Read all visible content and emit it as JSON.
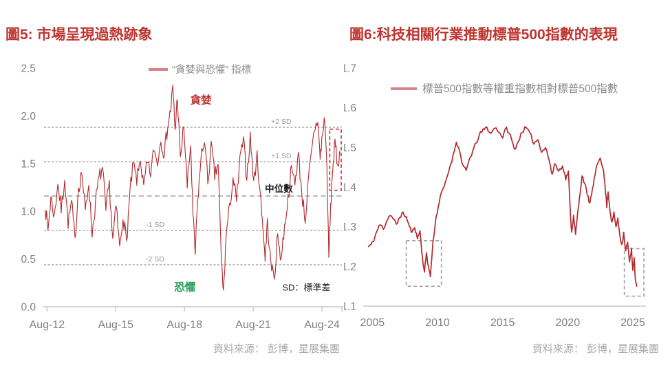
{
  "chart_data": [
    {
      "type": "line",
      "title": "圖5: 市場呈現過熱跡象",
      "title_color": "#c0342f",
      "legend": {
        "label": "“貪婪與恐懼” 指標",
        "swatch_color": "#d4878b",
        "text_color": "#8c8c8c"
      },
      "series_name": "貪婪與恐懼指標",
      "series_color": "#b3282c",
      "x_range": [
        2012.45,
        2025.45
      ],
      "y_range": [
        0,
        2.5
      ],
      "x_ticks": [
        {
          "v": 2012.58,
          "label": "Aug-12"
        },
        {
          "v": 2015.58,
          "label": "Aug-15"
        },
        {
          "v": 2018.58,
          "label": "Aug-18"
        },
        {
          "v": 2021.58,
          "label": "Aug-21"
        },
        {
          "v": 2024.58,
          "label": "Aug-24"
        }
      ],
      "y_ticks": [
        {
          "v": 0.0,
          "label": "0.0"
        },
        {
          "v": 0.5,
          "label": "0.5"
        },
        {
          "v": 1.0,
          "label": "1.0"
        },
        {
          "v": 1.5,
          "label": "1.5"
        },
        {
          "v": 2.0,
          "label": "2.0"
        },
        {
          "v": 2.5,
          "label": "2.5"
        }
      ],
      "gridlines": [
        {
          "v": 1.88,
          "label": "+2 SD",
          "label_x": 2022.8,
          "style": "dense",
          "label_style": "small"
        },
        {
          "v": 1.52,
          "label": "+1 SD",
          "label_x": 2022.8,
          "style": "dense",
          "label_style": "small"
        },
        {
          "v": 1.16,
          "label": "中位數",
          "label_x": 2022.7,
          "style": "median",
          "label_style": "dark"
        },
        {
          "v": 0.8,
          "label": "-1 SD",
          "label_x": 2017.3,
          "style": "dense",
          "label_style": "small"
        },
        {
          "v": 0.44,
          "label": "-2 SD",
          "label_x": 2017.3,
          "style": "dense",
          "label_style": "small"
        }
      ],
      "annotations": [
        {
          "text": "貪婪",
          "x": 2019.3,
          "y": 2.13,
          "color": "#c0342f",
          "size": 15.5,
          "bold": true
        },
        {
          "text": "恐懼",
          "x": 2018.6,
          "y": 0.17,
          "color": "#2f9e5f",
          "size": 15.5,
          "bold": true
        },
        {
          "text": "SD：標準差",
          "x": 2023.9,
          "y": 0.17,
          "color": "#1a1a1a",
          "size": 13,
          "bold": false
        }
      ],
      "highlight_rects": [
        {
          "x0": 2024.92,
          "x1": 2025.42,
          "y0": 1.22,
          "y1": 1.86,
          "color": "#c9363c"
        }
      ],
      "noise": {
        "seed": 7,
        "amp": 0.085,
        "subdiv": 4
      },
      "anchors": [
        [
          2012.5,
          1.05
        ],
        [
          2012.62,
          0.8
        ],
        [
          2012.75,
          1.15
        ],
        [
          2012.9,
          0.95
        ],
        [
          2013.05,
          1.3
        ],
        [
          2013.2,
          1.0
        ],
        [
          2013.35,
          1.35
        ],
        [
          2013.5,
          0.85
        ],
        [
          2013.65,
          1.1
        ],
        [
          2013.8,
          0.7
        ],
        [
          2013.95,
          1.25
        ],
        [
          2014.1,
          1.4
        ],
        [
          2014.25,
          1.0
        ],
        [
          2014.4,
          1.3
        ],
        [
          2014.55,
          0.75
        ],
        [
          2014.7,
          1.1
        ],
        [
          2014.85,
          1.35
        ],
        [
          2015.0,
          1.45
        ],
        [
          2015.15,
          1.0
        ],
        [
          2015.3,
          1.3
        ],
        [
          2015.45,
          0.7
        ],
        [
          2015.6,
          1.05
        ],
        [
          2015.75,
          0.62
        ],
        [
          2015.9,
          0.95
        ],
        [
          2016.05,
          0.68
        ],
        [
          2016.2,
          1.2
        ],
        [
          2016.35,
          1.5
        ],
        [
          2016.5,
          1.3
        ],
        [
          2016.65,
          1.55
        ],
        [
          2016.8,
          1.25
        ],
        [
          2016.95,
          1.5
        ],
        [
          2017.1,
          1.38
        ],
        [
          2017.25,
          1.65
        ],
        [
          2017.4,
          1.5
        ],
        [
          2017.55,
          1.75
        ],
        [
          2017.7,
          1.6
        ],
        [
          2017.85,
          1.9
        ],
        [
          2017.97,
          2.05
        ],
        [
          2018.07,
          2.3
        ],
        [
          2018.17,
          1.85
        ],
        [
          2018.27,
          2.2
        ],
        [
          2018.4,
          1.55
        ],
        [
          2018.55,
          1.9
        ],
        [
          2018.7,
          1.25
        ],
        [
          2018.85,
          1.7
        ],
        [
          2018.95,
          0.95
        ],
        [
          2019.05,
          0.55
        ],
        [
          2019.15,
          1.1
        ],
        [
          2019.3,
          1.55
        ],
        [
          2019.45,
          1.75
        ],
        [
          2019.6,
          1.3
        ],
        [
          2019.75,
          1.7
        ],
        [
          2019.9,
          1.35
        ],
        [
          2020.05,
          1.5
        ],
        [
          2020.18,
          0.55
        ],
        [
          2020.28,
          0.15
        ],
        [
          2020.4,
          0.75
        ],
        [
          2020.55,
          1.05
        ],
        [
          2020.7,
          1.35
        ],
        [
          2020.85,
          1.1
        ],
        [
          2021.0,
          1.55
        ],
        [
          2021.15,
          1.75
        ],
        [
          2021.3,
          1.35
        ],
        [
          2021.45,
          1.8
        ],
        [
          2021.6,
          1.3
        ],
        [
          2021.75,
          1.6
        ],
        [
          2021.9,
          1.15
        ],
        [
          2022.0,
          0.85
        ],
        [
          2022.1,
          0.5
        ],
        [
          2022.2,
          0.9
        ],
        [
          2022.35,
          0.45
        ],
        [
          2022.5,
          0.3
        ],
        [
          2022.65,
          0.75
        ],
        [
          2022.8,
          0.5
        ],
        [
          2022.95,
          0.85
        ],
        [
          2023.1,
          1.15
        ],
        [
          2023.25,
          1.45
        ],
        [
          2023.4,
          1.3
        ],
        [
          2023.55,
          1.6
        ],
        [
          2023.7,
          1.2
        ],
        [
          2023.85,
          0.9
        ],
        [
          2024.0,
          1.35
        ],
        [
          2024.12,
          1.6
        ],
        [
          2024.25,
          1.85
        ],
        [
          2024.4,
          1.95
        ],
        [
          2024.5,
          1.55
        ],
        [
          2024.6,
          1.8
        ],
        [
          2024.7,
          1.97
        ],
        [
          2024.8,
          1.45
        ],
        [
          2024.88,
          0.5
        ],
        [
          2024.96,
          1.05
        ],
        [
          2025.05,
          1.45
        ],
        [
          2025.15,
          1.72
        ],
        [
          2025.25,
          1.5
        ],
        [
          2025.38,
          1.62
        ]
      ],
      "line_width": 1.1,
      "source": "資料來源： 彭博，星展集團"
    },
    {
      "type": "line",
      "title": "圖6:科技相關行業推動標普500指數的表現",
      "title_color": "#c0342f",
      "legend": {
        "label": "標普500指數等權重指數相對標普500指數",
        "swatch_color": "#d4878b",
        "text_color": "#8c8c8c"
      },
      "series_name": "標普500等權重指數相對標普500指數",
      "series_color": "#b3282c",
      "x_range": [
        2004.4,
        2025.9
      ],
      "y_range": [
        1.1,
        1.7
      ],
      "x_ticks": [
        {
          "v": 2005,
          "label": "2005"
        },
        {
          "v": 2010,
          "label": "2010"
        },
        {
          "v": 2015,
          "label": "2015"
        },
        {
          "v": 2020,
          "label": "2020"
        },
        {
          "v": 2025,
          "label": "2025"
        }
      ],
      "y_ticks": [
        {
          "v": 1.1,
          "label": "1.1"
        },
        {
          "v": 1.2,
          "label": "1.2"
        },
        {
          "v": 1.3,
          "label": "1.3"
        },
        {
          "v": 1.4,
          "label": "1.4"
        },
        {
          "v": 1.5,
          "label": "1.5"
        },
        {
          "v": 1.6,
          "label": "1.6"
        },
        {
          "v": 1.7,
          "label": "1.7"
        }
      ],
      "gridlines": [],
      "annotations": [],
      "highlight_rects": [
        {
          "x0": 2007.6,
          "x1": 2010.3,
          "y0": 1.15,
          "y1": 1.265,
          "color": "#a3a3a3"
        },
        {
          "x0": 2024.35,
          "x1": 2025.85,
          "y0": 1.125,
          "y1": 1.245,
          "color": "#a3a3a3"
        }
      ],
      "noise": {
        "seed": 11,
        "amp": 0.0055,
        "subdiv": 3
      },
      "anchors": [
        [
          2004.7,
          1.25
        ],
        [
          2004.9,
          1.255
        ],
        [
          2005.1,
          1.265
        ],
        [
          2005.35,
          1.29
        ],
        [
          2005.6,
          1.305
        ],
        [
          2005.85,
          1.295
        ],
        [
          2006.1,
          1.315
        ],
        [
          2006.35,
          1.33
        ],
        [
          2006.6,
          1.32
        ],
        [
          2006.85,
          1.305
        ],
        [
          2007.1,
          1.325
        ],
        [
          2007.35,
          1.335
        ],
        [
          2007.6,
          1.325
        ],
        [
          2007.85,
          1.3
        ],
        [
          2008.05,
          1.285
        ],
        [
          2008.25,
          1.3
        ],
        [
          2008.45,
          1.27
        ],
        [
          2008.65,
          1.29
        ],
        [
          2008.85,
          1.22
        ],
        [
          2009.0,
          1.185
        ],
        [
          2009.15,
          1.235
        ],
        [
          2009.3,
          1.2
        ],
        [
          2009.45,
          1.175
        ],
        [
          2009.65,
          1.26
        ],
        [
          2009.85,
          1.315
        ],
        [
          2010.05,
          1.35
        ],
        [
          2010.3,
          1.385
        ],
        [
          2010.6,
          1.41
        ],
        [
          2010.9,
          1.445
        ],
        [
          2011.2,
          1.48
        ],
        [
          2011.45,
          1.515
        ],
        [
          2011.7,
          1.49
        ],
        [
          2011.95,
          1.455
        ],
        [
          2012.2,
          1.44
        ],
        [
          2012.45,
          1.47
        ],
        [
          2012.7,
          1.49
        ],
        [
          2012.95,
          1.51
        ],
        [
          2013.2,
          1.53
        ],
        [
          2013.5,
          1.545
        ],
        [
          2013.8,
          1.55
        ],
        [
          2014.1,
          1.535
        ],
        [
          2014.4,
          1.55
        ],
        [
          2014.7,
          1.54
        ],
        [
          2015.0,
          1.525
        ],
        [
          2015.3,
          1.55
        ],
        [
          2015.6,
          1.53
        ],
        [
          2015.9,
          1.495
        ],
        [
          2016.2,
          1.515
        ],
        [
          2016.5,
          1.54
        ],
        [
          2016.8,
          1.55
        ],
        [
          2017.1,
          1.535
        ],
        [
          2017.4,
          1.51
        ],
        [
          2017.7,
          1.52
        ],
        [
          2018.0,
          1.49
        ],
        [
          2018.3,
          1.5
        ],
        [
          2018.6,
          1.465
        ],
        [
          2018.8,
          1.43
        ],
        [
          2019.0,
          1.46
        ],
        [
          2019.3,
          1.44
        ],
        [
          2019.6,
          1.455
        ],
        [
          2019.85,
          1.42
        ],
        [
          2020.05,
          1.44
        ],
        [
          2020.18,
          1.35
        ],
        [
          2020.3,
          1.285
        ],
        [
          2020.45,
          1.33
        ],
        [
          2020.6,
          1.28
        ],
        [
          2020.75,
          1.33
        ],
        [
          2020.9,
          1.37
        ],
        [
          2021.1,
          1.43
        ],
        [
          2021.3,
          1.41
        ],
        [
          2021.5,
          1.38
        ],
        [
          2021.7,
          1.36
        ],
        [
          2021.9,
          1.395
        ],
        [
          2022.1,
          1.43
        ],
        [
          2022.3,
          1.46
        ],
        [
          2022.5,
          1.475
        ],
        [
          2022.7,
          1.45
        ],
        [
          2022.85,
          1.41
        ],
        [
          2023.0,
          1.35
        ],
        [
          2023.1,
          1.39
        ],
        [
          2023.25,
          1.34
        ],
        [
          2023.4,
          1.31
        ],
        [
          2023.55,
          1.335
        ],
        [
          2023.7,
          1.3
        ],
        [
          2023.85,
          1.32
        ],
        [
          2024.0,
          1.28
        ],
        [
          2024.15,
          1.255
        ],
        [
          2024.3,
          1.285
        ],
        [
          2024.45,
          1.24
        ],
        [
          2024.6,
          1.26
        ],
        [
          2024.75,
          1.21
        ],
        [
          2024.9,
          1.245
        ],
        [
          2025.0,
          1.19
        ],
        [
          2025.1,
          1.22
        ],
        [
          2025.2,
          1.165
        ],
        [
          2025.3,
          1.15
        ]
      ],
      "line_width": 1.7,
      "source": "資料來源： 彭博，星展集團"
    }
  ],
  "style": {
    "tick_label_color": "#7f7f7f",
    "grid_color": "#b0b0b0",
    "axis_color": "#c8c8c8",
    "sd_label_color": "#9a9a9a"
  }
}
